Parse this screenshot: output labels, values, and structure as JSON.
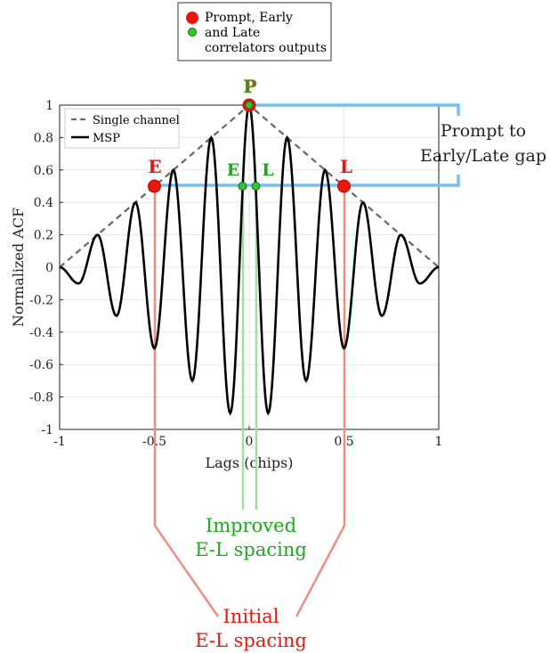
{
  "top_legend": {
    "items": [
      {
        "label_lines": [
          "Prompt, Early",
          "and Late",
          "correlators outputs"
        ]
      }
    ],
    "marker_colors": [
      "#e8160c",
      "#2ec530"
    ]
  },
  "chart_data": {
    "type": "line",
    "xlabel": "Lags (chips)",
    "ylabel": "Normalized ACF",
    "xlim": [
      -1,
      1
    ],
    "ylim": [
      -1,
      1
    ],
    "xticks": [
      -1,
      -0.5,
      0,
      0.5,
      1
    ],
    "xtick_labels": [
      "-1",
      "-0.5",
      "0",
      "0.5",
      "1"
    ],
    "yticks": [
      -1,
      -0.8,
      -0.6,
      -0.4,
      -0.2,
      0,
      0.2,
      0.4,
      0.6,
      0.8,
      1
    ],
    "ytick_labels": [
      "-1",
      "-0.8",
      "-0.6",
      "-0.4",
      "-0.2",
      "0",
      "0.2",
      "0.4",
      "0.6",
      "0.8",
      "1"
    ],
    "grid": true,
    "legend_position": "top-left",
    "series": [
      {
        "name": "Single channel",
        "style": "dashed",
        "color": "#666666",
        "x": [
          -1,
          0,
          1
        ],
        "y": [
          0,
          1,
          0
        ]
      },
      {
        "name": "MSP",
        "style": "solid",
        "color": "#000000",
        "model": "(1-|x|)*cos(10*pi*x)",
        "peaks_x": [
          -1,
          -0.9,
          -0.8,
          -0.7,
          -0.6,
          -0.5,
          -0.4,
          -0.3,
          -0.2,
          -0.1,
          0,
          0.1,
          0.2,
          0.3,
          0.4,
          0.5,
          0.6,
          0.7,
          0.8,
          0.9,
          1
        ],
        "peaks_y": [
          0,
          -0.1,
          0.2,
          -0.3,
          0.4,
          -0.5,
          0.6,
          -0.7,
          0.8,
          -0.9,
          1,
          -0.9,
          0.8,
          -0.7,
          0.6,
          -0.5,
          0.4,
          -0.3,
          0.2,
          -0.1,
          0
        ]
      }
    ],
    "correlator_points": {
      "initial": [
        {
          "label": "E",
          "x": -0.5,
          "y": 0.5
        },
        {
          "label": "P",
          "x": 0,
          "y": 1
        },
        {
          "label": "L",
          "x": 0.5,
          "y": 0.5
        }
      ],
      "improved": [
        {
          "label": "E",
          "x": -0.035,
          "y": 0.5
        },
        {
          "label": "L",
          "x": 0.035,
          "y": 0.5
        }
      ]
    }
  },
  "annotations": {
    "P_label": "P",
    "E_initial_label": "E",
    "L_initial_label": "L",
    "E_improved_label": "E",
    "L_improved_label": "L",
    "gap_label_lines": [
      "Prompt to",
      "Early/Late gap"
    ],
    "improved_label_lines": [
      "Improved",
      "E-L spacing"
    ],
    "initial_label_lines": [
      "Initial",
      "E-L spacing"
    ],
    "colors": {
      "red": "#e8160c",
      "green": "#1fa71f",
      "blue": "#74bff5",
      "pink": "#f08c85",
      "lightgreen": "#a6dba6",
      "brown": "#9a5a1a"
    }
  }
}
